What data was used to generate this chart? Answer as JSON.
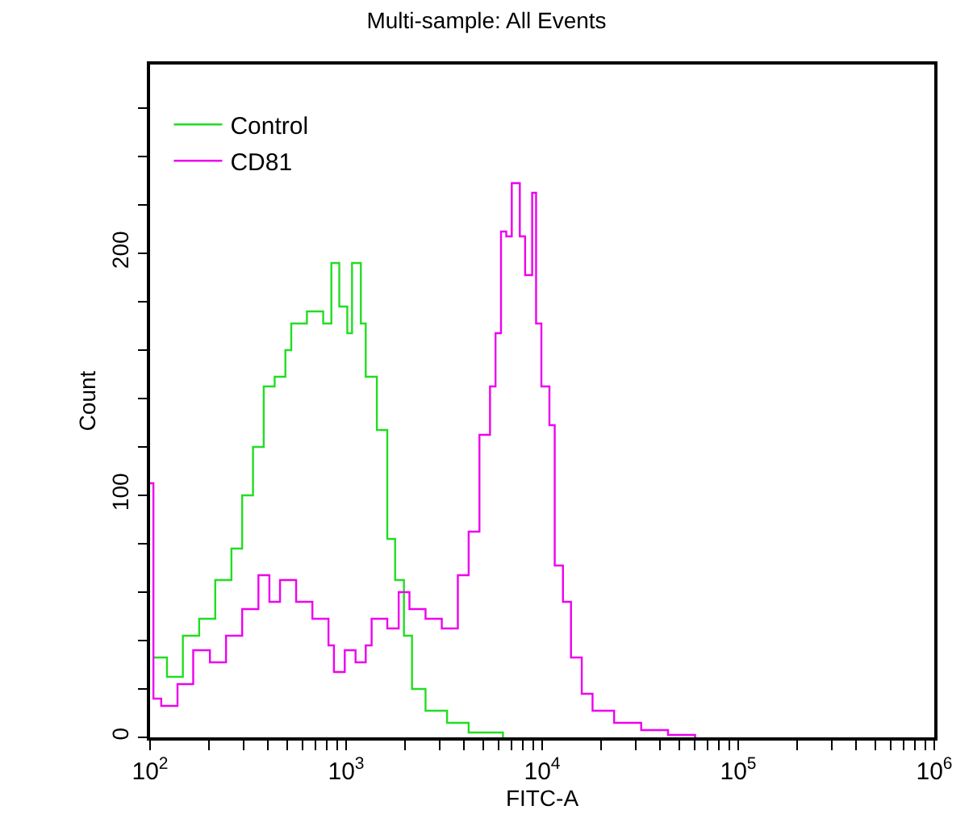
{
  "chart_data": {
    "type": "step",
    "title": "Multi-sample: All Events",
    "xlabel": "FITC-A",
    "ylabel": "Count",
    "log": "x",
    "xlim": [
      100,
      1000000
    ],
    "xticks": [
      {
        "value": 100,
        "label": "10$^{2}$"
      },
      {
        "value": 200,
        "label": null
      },
      {
        "value": 300,
        "label": null
      },
      {
        "value": 400,
        "label": null
      },
      {
        "value": 500,
        "label": null
      },
      {
        "value": 600,
        "label": null
      },
      {
        "value": 700,
        "label": null
      },
      {
        "value": 800,
        "label": null
      },
      {
        "value": 900,
        "label": null
      },
      {
        "value": 1000,
        "label": "10$^{3}$"
      },
      {
        "value": 2000,
        "label": null
      },
      {
        "value": 3000,
        "label": null
      },
      {
        "value": 4000,
        "label": null
      },
      {
        "value": 5000,
        "label": null
      },
      {
        "value": 6000,
        "label": null
      },
      {
        "value": 7000,
        "label": null
      },
      {
        "value": 8000,
        "label": null
      },
      {
        "value": 9000,
        "label": null
      },
      {
        "value": 10000,
        "label": "10$^{4}$"
      },
      {
        "value": 20000,
        "label": null
      },
      {
        "value": 30000,
        "label": null
      },
      {
        "value": 40000,
        "label": null
      },
      {
        "value": 50000,
        "label": null
      },
      {
        "value": 60000,
        "label": null
      },
      {
        "value": 70000,
        "label": null
      },
      {
        "value": 80000,
        "label": null
      },
      {
        "value": 90000,
        "label": null
      },
      {
        "value": 100000,
        "label": "10$^{5}$"
      },
      {
        "value": 200000,
        "label": null
      },
      {
        "value": 300000,
        "label": null
      },
      {
        "value": 400000,
        "label": null
      },
      {
        "value": 500000,
        "label": null
      },
      {
        "value": 600000,
        "label": null
      },
      {
        "value": 700000,
        "label": null
      },
      {
        "value": 800000,
        "label": null
      },
      {
        "value": 900000,
        "label": null
      },
      {
        "value": 1000000,
        "label": "10$^{6}$"
      }
    ],
    "ylim": [
      0,
      278
    ],
    "yticks": [
      0,
      {
        "value": 20,
        "label": null
      },
      {
        "value": 40,
        "label": null
      },
      {
        "value": 60,
        "label": null
      },
      {
        "value": 80,
        "label": null
      },
      100,
      {
        "value": 120,
        "label": null
      },
      {
        "value": 140,
        "label": null
      },
      {
        "value": 160,
        "label": null
      },
      {
        "value": 180,
        "label": null
      },
      200,
      {
        "value": 220,
        "label": null
      },
      {
        "value": 240,
        "label": null
      },
      {
        "value": 260,
        "label": null
      }
    ],
    "legend": "top left",
    "marker": "none",
    "series": [
      {
        "name": "Control",
        "color": "#22dd22",
        "x": [
          104,
          122,
          147,
          178,
          215,
          260,
          295,
          335,
          380,
          432,
          490,
          525,
          631,
          764,
          841,
          923,
          1014,
          1072,
          1189,
          1259,
          1435,
          1622,
          1778,
          1972,
          2168,
          2541,
          3273,
          4217,
          6310
        ],
        "values": [
          33,
          25,
          42,
          49,
          65,
          78,
          100,
          120,
          145,
          149,
          160,
          171,
          176,
          171,
          196,
          178,
          167,
          196,
          171,
          149,
          127,
          82,
          65,
          42,
          20,
          11,
          6,
          2,
          0
        ]
      },
      {
        "name": "CD81",
        "color": "#ee00ee",
        "x": [
          100,
          104,
          114,
          138,
          166,
          202,
          244,
          295,
          357,
          406,
          460,
          556,
          673,
          813,
          867,
          984,
          1117,
          1259,
          1349,
          1622,
          1854,
          2104,
          2541,
          3076,
          3715,
          4217,
          4786,
          5420,
          5781,
          6166,
          6561,
          6998,
          7691,
          8185,
          8892,
          9311,
          9908,
          10889,
          11588,
          12764,
          14028,
          15922,
          18072,
          23281,
          31989,
          43853,
          60256
        ],
        "values": [
          105,
          16,
          13,
          22,
          36,
          31,
          42,
          53,
          67,
          56,
          65,
          56,
          49,
          38,
          27,
          36,
          31,
          38,
          49,
          45,
          60,
          53,
          49,
          45,
          67,
          85,
          125,
          145,
          167,
          209,
          207,
          229,
          207,
          191,
          225,
          171,
          145,
          129,
          71,
          56,
          33,
          18,
          11,
          6,
          3,
          1,
          0
        ]
      }
    ]
  }
}
